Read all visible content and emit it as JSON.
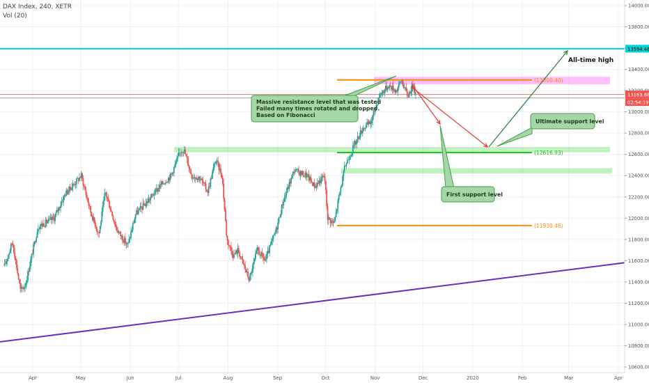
{
  "header": {
    "symbol": "DAX Index, 240, XETR",
    "volume": "Vol (20)"
  },
  "chart_data": {
    "type": "candlestick",
    "y_range": [
      10600,
      14000
    ],
    "y_ticks": [
      10600,
      10800,
      11000,
      11200,
      11400,
      11600,
      11800,
      12000,
      12200,
      12400,
      12600,
      12800,
      13000,
      13200,
      13400,
      13600,
      13800,
      14000
    ],
    "y_tick_labels": [
      "10600.00",
      "10800.00",
      "11000.00",
      "11200.00",
      "11400.00",
      "11600.00",
      "11800.00",
      "12000.00",
      "12200.00",
      "12400.00",
      "12600.00",
      "12800.00",
      "13000.00",
      "13200.00",
      "13400.00",
      "13600.00",
      "13800.00",
      "14000.00"
    ],
    "x_labels": [
      "Apr",
      "May",
      "Jun",
      "Jul",
      "Aug",
      "Sep",
      "Oct",
      "Nov",
      "Dec",
      "2020",
      "Feb",
      "Mar",
      "Apr"
    ],
    "x_label_dates": [
      "2019-04-01",
      "2019-05-01",
      "2019-06-01",
      "2019-07-01",
      "2019-08-01",
      "2019-09-01",
      "2019-10-01",
      "2019-11-01",
      "2019-12-01",
      "2020-01-01",
      "2020-02-01",
      "2020-03-01",
      "2020-04-01"
    ],
    "price_path": [
      [
        "2019-03-15",
        11550
      ],
      [
        "2019-03-20",
        11780
      ],
      [
        "2019-03-25",
        11320
      ],
      [
        "2019-03-28",
        11370
      ],
      [
        "2019-04-05",
        11920
      ],
      [
        "2019-04-15",
        12000
      ],
      [
        "2019-04-22",
        12230
      ],
      [
        "2019-05-02",
        12400
      ],
      [
        "2019-05-08",
        12050
      ],
      [
        "2019-05-13",
        11850
      ],
      [
        "2019-05-17",
        12250
      ],
      [
        "2019-05-24",
        11900
      ],
      [
        "2019-05-31",
        11740
      ],
      [
        "2019-06-05",
        12040
      ],
      [
        "2019-06-12",
        12150
      ],
      [
        "2019-06-20",
        12300
      ],
      [
        "2019-06-27",
        12400
      ],
      [
        "2019-07-03",
        12630
      ],
      [
        "2019-07-05",
        12650
      ],
      [
        "2019-07-10",
        12400
      ],
      [
        "2019-07-15",
        12380
      ],
      [
        "2019-07-20",
        12250
      ],
      [
        "2019-07-25",
        12550
      ],
      [
        "2019-07-29",
        12400
      ],
      [
        "2019-08-01",
        11800
      ],
      [
        "2019-08-05",
        11650
      ],
      [
        "2019-08-08",
        11700
      ],
      [
        "2019-08-15",
        11420
      ],
      [
        "2019-08-20",
        11700
      ],
      [
        "2019-08-25",
        11600
      ],
      [
        "2019-09-01",
        11900
      ],
      [
        "2019-09-05",
        12150
      ],
      [
        "2019-09-12",
        12450
      ],
      [
        "2019-09-20",
        12400
      ],
      [
        "2019-09-25",
        12300
      ],
      [
        "2019-10-01",
        12400
      ],
      [
        "2019-10-03",
        12000
      ],
      [
        "2019-10-07",
        11950
      ],
      [
        "2019-10-10",
        12200
      ],
      [
        "2019-10-14",
        12500
      ],
      [
        "2019-10-20",
        12700
      ],
      [
        "2019-10-25",
        12850
      ],
      [
        "2019-10-30",
        12900
      ],
      [
        "2019-11-04",
        13150
      ],
      [
        "2019-11-10",
        13250
      ],
      [
        "2019-11-15",
        13200
      ],
      [
        "2019-11-18",
        13300
      ],
      [
        "2019-11-22",
        13150
      ],
      [
        "2019-11-25",
        13250
      ],
      [
        "2019-11-27",
        13163
      ]
    ],
    "candle_count": 440,
    "last_price": "13163.88",
    "countdown": "02:54:19",
    "horizontal_levels": [
      {
        "price": 13594.48,
        "label": "13594.48",
        "color": "#00d4d4"
      },
      {
        "price": 13300.4,
        "label": "(13300.40)",
        "color": "#ff8c00"
      },
      {
        "price": 12616.93,
        "label": "(12616.93)",
        "color": "#22b822"
      },
      {
        "price": 11930.46,
        "label": "(11930.46)",
        "color": "#ff8c00"
      }
    ],
    "zones": [
      {
        "low": 13260,
        "high": 13330,
        "color": "#ff66ff"
      },
      {
        "low": 12620,
        "high": 12670,
        "color": "#66e066"
      },
      {
        "low": 12420,
        "high": 12470,
        "color": "#66e066"
      }
    ],
    "trendline": {
      "start": [
        "2019-03-15",
        10830
      ],
      "end": [
        "2020-04-15",
        11620
      ],
      "color": "#6a2fbf"
    },
    "projection": [
      [
        "2019-11-27",
        13350
      ],
      [
        "2019-12-10",
        12850
      ],
      [
        "2019-12-22",
        12650
      ],
      [
        "2020-01-15",
        13540
      ]
    ],
    "annotations": [
      {
        "id": "resistance",
        "lines": [
          "Massive resistance level that was tested",
          "Failed many times rotated and dropped.",
          "Based on Fibonacci"
        ]
      },
      {
        "id": "support1",
        "lines": [
          "First support level"
        ]
      },
      {
        "id": "support2",
        "lines": [
          "Ultimate support level"
        ]
      },
      {
        "id": "ath",
        "lines": [
          "All-time high"
        ]
      }
    ],
    "colors": {
      "up": "#26a69a",
      "down": "#ef5350",
      "callout_fill": "#a5d6a7",
      "callout_border": "#43a047",
      "arrow_red": "#e53935",
      "arrow_green": "#2e7d32"
    }
  }
}
